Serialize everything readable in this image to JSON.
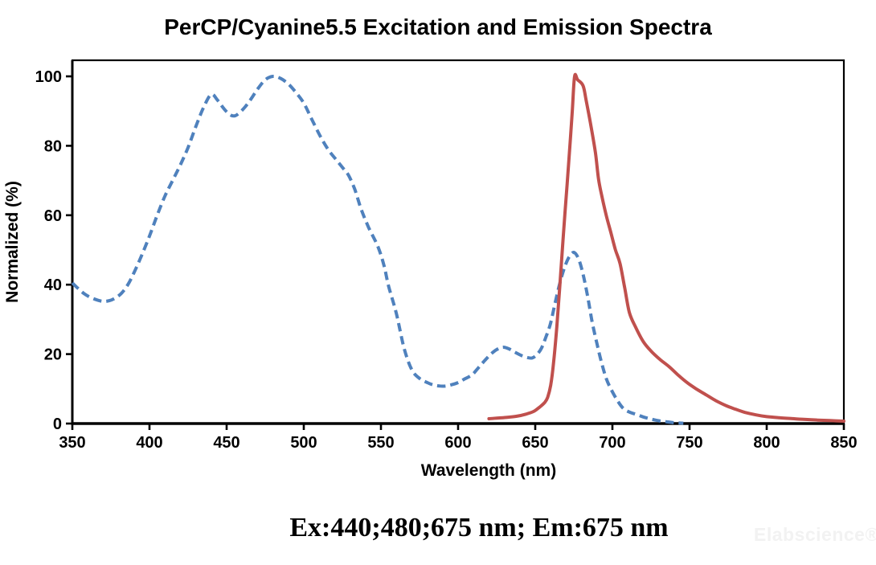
{
  "page": {
    "title": "PerCP/Cyanine5.5 Excitation and Emission Spectra",
    "caption": "Ex:440;480;675 nm; Em:675 nm",
    "watermark": "Elabscience®"
  },
  "chart_data": {
    "type": "line",
    "title": "PerCP/Cyanine5.5 Excitation and Emission Spectra",
    "xlabel": "Wavelength (nm)",
    "ylabel": "Normalized (%)",
    "xlim": [
      350,
      850
    ],
    "ylim": [
      0,
      100
    ],
    "x_ticks": [
      350,
      400,
      450,
      500,
      550,
      600,
      650,
      700,
      750,
      800,
      850
    ],
    "y_ticks": [
      0,
      20,
      40,
      60,
      80,
      100
    ],
    "grid": false,
    "legend": "none",
    "annotation": "Ex:440;480;675 nm; Em:675 nm",
    "axis_color": "#000000",
    "series": [
      {
        "name": "Excitation",
        "style": "dashed",
        "color": "#4f81bd",
        "points": [
          [
            350,
            40.5
          ],
          [
            354,
            38.8
          ],
          [
            358,
            37.3
          ],
          [
            362,
            36.3
          ],
          [
            366,
            35.6
          ],
          [
            370,
            35.2
          ],
          [
            374,
            35.4
          ],
          [
            378,
            36.2
          ],
          [
            382,
            37.6
          ],
          [
            386,
            40
          ],
          [
            390,
            43.5
          ],
          [
            395,
            48.5
          ],
          [
            400,
            54
          ],
          [
            405,
            60
          ],
          [
            410,
            65.5
          ],
          [
            415,
            70
          ],
          [
            420,
            74.5
          ],
          [
            425,
            79.5
          ],
          [
            430,
            85.5
          ],
          [
            435,
            91
          ],
          [
            440,
            94.8
          ],
          [
            444,
            93.2
          ],
          [
            448,
            90.8
          ],
          [
            452,
            89
          ],
          [
            455,
            88.6
          ],
          [
            458,
            89.4
          ],
          [
            462,
            91.2
          ],
          [
            466,
            93.6
          ],
          [
            470,
            96.3
          ],
          [
            475,
            99
          ],
          [
            480,
            100
          ],
          [
            485,
            99.4
          ],
          [
            490,
            97.8
          ],
          [
            495,
            95.3
          ],
          [
            500,
            92.3
          ],
          [
            505,
            87.8
          ],
          [
            511,
            82.5
          ],
          [
            516,
            78.8
          ],
          [
            521,
            76
          ],
          [
            525,
            73.8
          ],
          [
            529,
            71.5
          ],
          [
            533,
            67.5
          ],
          [
            537,
            62
          ],
          [
            542,
            56.5
          ],
          [
            548,
            51
          ],
          [
            552,
            45.5
          ],
          [
            555,
            39.5
          ],
          [
            560,
            31.7
          ],
          [
            565,
            21.7
          ],
          [
            570,
            15.5
          ],
          [
            575,
            13
          ],
          [
            580,
            11.8
          ],
          [
            584,
            11.1
          ],
          [
            588,
            10.8
          ],
          [
            592,
            10.8
          ],
          [
            596,
            11.2
          ],
          [
            600,
            11.8
          ],
          [
            604,
            12.8
          ],
          [
            609,
            14
          ],
          [
            613,
            16
          ],
          [
            617,
            18
          ],
          [
            621,
            19.9
          ],
          [
            625,
            21.3
          ],
          [
            629,
            22
          ],
          [
            633,
            21.5
          ],
          [
            637,
            20.5
          ],
          [
            641,
            19.6
          ],
          [
            645,
            19
          ],
          [
            648,
            18.9
          ],
          [
            651,
            19.8
          ],
          [
            654,
            21.7
          ],
          [
            657,
            25
          ],
          [
            660,
            29
          ],
          [
            663,
            35
          ],
          [
            666,
            40.5
          ],
          [
            669,
            45
          ],
          [
            672,
            48
          ],
          [
            675,
            49.3
          ],
          [
            678,
            47.5
          ],
          [
            681,
            43
          ],
          [
            684,
            36.5
          ],
          [
            687,
            29
          ],
          [
            690,
            23
          ],
          [
            693,
            17.5
          ],
          [
            696,
            13
          ],
          [
            699,
            10
          ],
          [
            703,
            6.8
          ],
          [
            707,
            4.4
          ],
          [
            711,
            3.3
          ],
          [
            715,
            2.7
          ],
          [
            720,
            1.9
          ],
          [
            725,
            1.3
          ],
          [
            730,
            0.8
          ],
          [
            735,
            0.5
          ],
          [
            740,
            0.25
          ],
          [
            746,
            0.1
          ]
        ]
      },
      {
        "name": "Emission",
        "style": "solid",
        "color": "#c0504d",
        "points": [
          [
            620,
            1.4
          ],
          [
            626,
            1.6
          ],
          [
            632,
            1.8
          ],
          [
            638,
            2.1
          ],
          [
            644,
            2.7
          ],
          [
            649,
            3.5
          ],
          [
            653,
            4.8
          ],
          [
            656,
            6
          ],
          [
            658,
            7.5
          ],
          [
            660,
            11
          ],
          [
            662,
            18
          ],
          [
            664,
            28
          ],
          [
            666,
            40
          ],
          [
            668,
            53
          ],
          [
            670,
            65
          ],
          [
            672,
            77
          ],
          [
            674,
            90
          ],
          [
            675.5,
            100
          ],
          [
            677.5,
            99
          ],
          [
            681,
            97.3
          ],
          [
            683,
            93
          ],
          [
            686,
            86
          ],
          [
            689,
            78
          ],
          [
            691,
            70.5
          ],
          [
            693,
            65.8
          ],
          [
            696,
            60
          ],
          [
            699,
            55
          ],
          [
            702,
            50
          ],
          [
            705,
            46
          ],
          [
            708,
            39
          ],
          [
            711,
            32
          ],
          [
            715,
            27.8
          ],
          [
            720,
            23.6
          ],
          [
            725,
            20.9
          ],
          [
            731,
            18.4
          ],
          [
            737,
            16.3
          ],
          [
            743,
            13.8
          ],
          [
            749,
            11.6
          ],
          [
            755,
            9.8
          ],
          [
            761,
            8.2
          ],
          [
            767,
            6.6
          ],
          [
            774,
            5.1
          ],
          [
            780,
            4.1
          ],
          [
            786,
            3.2
          ],
          [
            793,
            2.5
          ],
          [
            800,
            2
          ],
          [
            808,
            1.7
          ],
          [
            816,
            1.45
          ],
          [
            824,
            1.2
          ],
          [
            833,
            1
          ],
          [
            841,
            0.85
          ],
          [
            850,
            0.7
          ]
        ]
      }
    ]
  }
}
